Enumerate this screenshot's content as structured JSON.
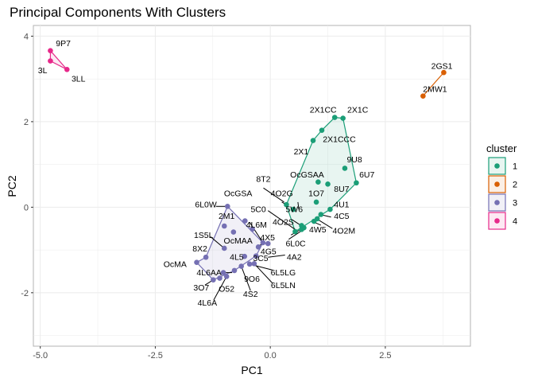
{
  "chart_data": {
    "type": "scatter",
    "title": "Principal Components With Clusters",
    "xlabel": "PC1",
    "ylabel": "PC2",
    "xlim": [
      -5.15,
      4.35
    ],
    "ylim": [
      -3.25,
      4.25
    ],
    "xticks": [
      -5.0,
      -2.5,
      0.0,
      2.5
    ],
    "xtick_labels": [
      "-5.0",
      "-2.5",
      "0.0",
      "2.5"
    ],
    "yticks": [
      -2,
      0,
      2,
      4
    ],
    "ytick_labels": [
      "-2",
      "0",
      "2",
      "4"
    ],
    "grid": true,
    "legend": {
      "title": "cluster",
      "position": "right",
      "entries": [
        {
          "label": "1",
          "color": "#1b9e77"
        },
        {
          "label": "2",
          "color": "#d95f02"
        },
        {
          "label": "3",
          "color": "#7570b3"
        },
        {
          "label": "4",
          "color": "#e7298a"
        }
      ]
    },
    "colors": {
      "1": "#1b9e77",
      "2": "#d95f02",
      "3": "#7570b3",
      "4": "#e7298a"
    },
    "points": [
      {
        "label": "9P7",
        "x": -4.78,
        "y": 3.66,
        "cluster": "4"
      },
      {
        "label": "3L",
        "x": -4.78,
        "y": 3.42,
        "cluster": "4"
      },
      {
        "label": "3LL",
        "x": -4.42,
        "y": 3.22,
        "cluster": "4"
      },
      {
        "label": "2GS1",
        "x": 3.77,
        "y": 3.15,
        "cluster": "2"
      },
      {
        "label": "2MW1",
        "x": 3.32,
        "y": 2.6,
        "cluster": "2"
      },
      {
        "label": "2X1CC",
        "x": 1.4,
        "y": 2.1,
        "cluster": "1"
      },
      {
        "label": "2X1C",
        "x": 1.58,
        "y": 2.08,
        "cluster": "1"
      },
      {
        "label": "2X1CCC",
        "x": 1.12,
        "y": 1.8,
        "cluster": "1"
      },
      {
        "label": "2X1",
        "x": 0.93,
        "y": 1.56,
        "cluster": "1"
      },
      {
        "label": "9U8",
        "x": 1.62,
        "y": 0.91,
        "cluster": "1"
      },
      {
        "label": "OcGSAA",
        "x": 1.04,
        "y": 0.59,
        "cluster": "1"
      },
      {
        "label": "8U7",
        "x": 1.25,
        "y": 0.54,
        "cluster": "1"
      },
      {
        "label": "6U7",
        "x": 1.87,
        "y": 0.57,
        "cluster": "1"
      },
      {
        "label": "1O7",
        "x": 1.0,
        "y": 0.12,
        "cluster": "1"
      },
      {
        "label": "4O2G",
        "x": 0.35,
        "y": 0.06,
        "cluster": "1"
      },
      {
        "label": "8T2",
        "x": 0.5,
        "y": -0.05,
        "cluster": "1"
      },
      {
        "label": "4U1",
        "x": 1.3,
        "y": -0.05,
        "cluster": "1"
      },
      {
        "label": "5W6",
        "x": 0.68,
        "y": -0.43,
        "cluster": "1"
      },
      {
        "label": "4C5",
        "x": 1.1,
        "y": -0.17,
        "cluster": "1"
      },
      {
        "label": "4O2S",
        "x": 0.73,
        "y": -0.48,
        "cluster": "1"
      },
      {
        "label": "4W5",
        "x": 0.95,
        "y": -0.33,
        "cluster": "1"
      },
      {
        "label": "4O2M",
        "x": 1.02,
        "y": -0.27,
        "cluster": "1"
      },
      {
        "label": "5C0",
        "x": 0.68,
        "y": -0.52,
        "cluster": "1"
      },
      {
        "label": "6L0C",
        "x": 0.54,
        "y": -0.57,
        "cluster": "1"
      },
      {
        "label": "6L0W",
        "x": -0.93,
        "y": 0.02,
        "cluster": "3"
      },
      {
        "label": "OcGSA",
        "x": -0.55,
        "y": -0.32,
        "cluster": "3"
      },
      {
        "label": "2M1",
        "x": -1.0,
        "y": -0.44,
        "cluster": "3"
      },
      {
        "label": "4L6M",
        "x": -0.39,
        "y": -0.51,
        "cluster": "3"
      },
      {
        "label": "OcMAA",
        "x": -0.8,
        "y": -0.58,
        "cluster": "3"
      },
      {
        "label": "4X5",
        "x": -0.16,
        "y": -0.83,
        "cluster": "3"
      },
      {
        "label": "1S5L",
        "x": -1.0,
        "y": -0.96,
        "cluster": "3"
      },
      {
        "label": "4G5",
        "x": -0.26,
        "y": -0.93,
        "cluster": "3"
      },
      {
        "label": "8X2",
        "x": -1.4,
        "y": -1.17,
        "cluster": "3"
      },
      {
        "label": "4L5",
        "x": -0.56,
        "y": -1.15,
        "cluster": "3"
      },
      {
        "label": "3C5",
        "x": -0.31,
        "y": -1.14,
        "cluster": "3"
      },
      {
        "label": "4A2",
        "x": -0.05,
        "y": -0.85,
        "cluster": "3"
      },
      {
        "label": "OcMA",
        "x": -1.6,
        "y": -1.29,
        "cluster": "3"
      },
      {
        "label": "4L6AA",
        "x": -1.02,
        "y": -1.53,
        "cluster": "3"
      },
      {
        "label": "9O6",
        "x": -0.78,
        "y": -1.48,
        "cluster": "3"
      },
      {
        "label": "6L5LG",
        "x": -0.45,
        "y": -1.33,
        "cluster": "3"
      },
      {
        "label": "3O7",
        "x": -1.24,
        "y": -1.7,
        "cluster": "3"
      },
      {
        "label": "O52",
        "x": -1.1,
        "y": -1.66,
        "cluster": "3"
      },
      {
        "label": "4S2",
        "x": -0.63,
        "y": -1.38,
        "cluster": "3"
      },
      {
        "label": "6L5LN",
        "x": -0.35,
        "y": -1.32,
        "cluster": "3"
      },
      {
        "label": "4L6A",
        "x": -0.95,
        "y": -1.62,
        "cluster": "3"
      }
    ],
    "hulls": {
      "1": [
        [
          1.4,
          2.1
        ],
        [
          1.58,
          2.08
        ],
        [
          1.87,
          0.57
        ],
        [
          1.3,
          -0.05
        ],
        [
          0.54,
          -0.57
        ],
        [
          0.35,
          0.06
        ],
        [
          0.93,
          1.56
        ],
        [
          1.12,
          1.8
        ]
      ],
      "2": [
        [
          3.77,
          3.15
        ],
        [
          3.32,
          2.6
        ]
      ],
      "3": [
        [
          -0.93,
          0.02
        ],
        [
          -0.16,
          -0.83
        ],
        [
          -0.31,
          -1.14
        ],
        [
          -0.78,
          -1.48
        ],
        [
          -1.24,
          -1.7
        ],
        [
          -1.6,
          -1.29
        ],
        [
          -1.4,
          -1.17
        ]
      ],
      "4": [
        [
          -4.78,
          3.66
        ],
        [
          -4.42,
          3.22
        ],
        [
          -4.78,
          3.42
        ]
      ]
    },
    "labels": [
      {
        "text": "9P7",
        "x": -4.5,
        "y": 3.83,
        "anchor": "middle"
      },
      {
        "text": "3L",
        "x": -4.95,
        "y": 3.2,
        "anchor": "middle"
      },
      {
        "text": "3LL",
        "x": -4.17,
        "y": 3.0,
        "anchor": "middle"
      },
      {
        "text": "2GS1",
        "x": 3.73,
        "y": 3.3,
        "anchor": "middle"
      },
      {
        "text": "2MW1",
        "x": 3.58,
        "y": 2.76,
        "anchor": "middle"
      },
      {
        "text": "2X1CC",
        "x": 1.15,
        "y": 2.28,
        "anchor": "middle"
      },
      {
        "text": "2X1C",
        "x": 1.9,
        "y": 2.28,
        "anchor": "middle"
      },
      {
        "text": "2X1CCC",
        "x": 1.5,
        "y": 1.59,
        "anchor": "middle"
      },
      {
        "text": "2X1",
        "x": 0.67,
        "y": 1.3,
        "anchor": "middle"
      },
      {
        "text": "9U8",
        "x": 1.83,
        "y": 1.11,
        "anchor": "middle"
      },
      {
        "text": "OcGSAA",
        "x": 0.8,
        "y": 0.76,
        "anchor": "middle"
      },
      {
        "text": "8U7",
        "x": 1.55,
        "y": 0.43,
        "anchor": "middle"
      },
      {
        "text": "6U7",
        "x": 2.1,
        "y": 0.76,
        "anchor": "middle"
      },
      {
        "text": "1O7",
        "x": 1.0,
        "y": 0.32,
        "anchor": "middle"
      },
      {
        "text": "4O2G",
        "x": 0.25,
        "y": 0.32,
        "anchor": "middle"
      },
      {
        "text": "8T2",
        "x": -0.15,
        "y": 0.66,
        "anchor": "middle"
      },
      {
        "text": "4U1",
        "x": 1.55,
        "y": 0.06,
        "anchor": "middle"
      },
      {
        "text": "5C0",
        "x": -0.26,
        "y": -0.05,
        "anchor": "middle"
      },
      {
        "text": "5W6",
        "x": 0.52,
        "y": -0.05,
        "anchor": "middle"
      },
      {
        "text": "4C5",
        "x": 1.55,
        "y": -0.21,
        "anchor": "middle"
      },
      {
        "text": "4O2S",
        "x": 0.28,
        "y": -0.35,
        "anchor": "middle"
      },
      {
        "text": "4W5",
        "x": 1.03,
        "y": -0.52,
        "anchor": "middle"
      },
      {
        "text": "4O2M",
        "x": 1.6,
        "y": -0.55,
        "anchor": "middle"
      },
      {
        "text": "6L0C",
        "x": 0.55,
        "y": -0.85,
        "anchor": "middle"
      },
      {
        "text": "6L0W",
        "x": -1.4,
        "y": 0.06,
        "anchor": "middle"
      },
      {
        "text": "OcGSA",
        "x": -0.7,
        "y": 0.32,
        "anchor": "middle"
      },
      {
        "text": "2M1",
        "x": -0.95,
        "y": -0.21,
        "anchor": "middle"
      },
      {
        "text": "4L6M",
        "x": -0.3,
        "y": -0.41,
        "anchor": "middle"
      },
      {
        "text": "1S5L",
        "x": -1.45,
        "y": -0.65,
        "anchor": "middle"
      },
      {
        "text": "OcMAA",
        "x": -0.7,
        "y": -0.78,
        "anchor": "middle"
      },
      {
        "text": "4X5",
        "x": -0.06,
        "y": -0.71,
        "anchor": "middle"
      },
      {
        "text": "4G5",
        "x": -0.04,
        "y": -1.04,
        "anchor": "middle"
      },
      {
        "text": "8X2",
        "x": -1.53,
        "y": -0.97,
        "anchor": "middle"
      },
      {
        "text": "4L5",
        "x": -0.73,
        "y": -1.17,
        "anchor": "middle"
      },
      {
        "text": "3C5",
        "x": -0.21,
        "y": -1.19,
        "anchor": "middle"
      },
      {
        "text": "4A2",
        "x": 0.52,
        "y": -1.17,
        "anchor": "middle"
      },
      {
        "text": "OcMA",
        "x": -2.07,
        "y": -1.33,
        "anchor": "middle"
      },
      {
        "text": "4L6AA",
        "x": -1.33,
        "y": -1.53,
        "anchor": "middle"
      },
      {
        "text": "6L5LG",
        "x": 0.28,
        "y": -1.53,
        "anchor": "middle"
      },
      {
        "text": "9O6",
        "x": -0.4,
        "y": -1.68,
        "anchor": "middle"
      },
      {
        "text": "6L5LN",
        "x": 0.28,
        "y": -1.83,
        "anchor": "middle"
      },
      {
        "text": "3O7",
        "x": -1.5,
        "y": -1.88,
        "anchor": "middle"
      },
      {
        "text": "O52",
        "x": -0.95,
        "y": -1.91,
        "anchor": "middle"
      },
      {
        "text": "4S2",
        "x": -0.43,
        "y": -2.03,
        "anchor": "middle"
      },
      {
        "text": "4L6A",
        "x": -1.37,
        "y": -2.24,
        "anchor": "middle"
      }
    ],
    "leaders": [
      [
        -1.18,
        0.02,
        -0.93,
        0.02
      ],
      [
        -0.15,
        0.45,
        0.3,
        0.12
      ],
      [
        0.25,
        0.12,
        0.35,
        0.06
      ],
      [
        -0.05,
        -0.08,
        0.54,
        -0.52
      ],
      [
        0.47,
        -0.29,
        0.7,
        -0.45
      ],
      [
        1.1,
        -0.42,
        0.95,
        -0.35
      ],
      [
        1.32,
        -0.23,
        1.12,
        -0.18
      ],
      [
        1.35,
        -0.5,
        1.05,
        -0.3
      ],
      [
        0.6,
        0.12,
        0.62,
        -0.05
      ],
      [
        0.45,
        -0.65,
        0.73,
        -0.48
      ],
      [
        0.4,
        -0.75,
        0.68,
        -0.55
      ],
      [
        -0.45,
        -0.35,
        -0.16,
        -0.83
      ],
      [
        -0.18,
        -0.85,
        -0.26,
        -0.93
      ],
      [
        0.32,
        -1.12,
        -0.05,
        -1.17
      ],
      [
        0.05,
        -1.47,
        -0.45,
        -1.33
      ],
      [
        0.05,
        -1.78,
        -0.35,
        -1.32
      ],
      [
        -0.43,
        -1.95,
        -0.63,
        -1.38
      ],
      [
        -0.83,
        -1.53,
        -1.02,
        -1.53
      ],
      [
        -1.23,
        -2.17,
        -0.95,
        -1.62
      ],
      [
        -1.42,
        -1.82,
        -1.24,
        -1.7
      ],
      [
        -1.3,
        -0.69,
        -1.0,
        -0.96
      ]
    ]
  }
}
